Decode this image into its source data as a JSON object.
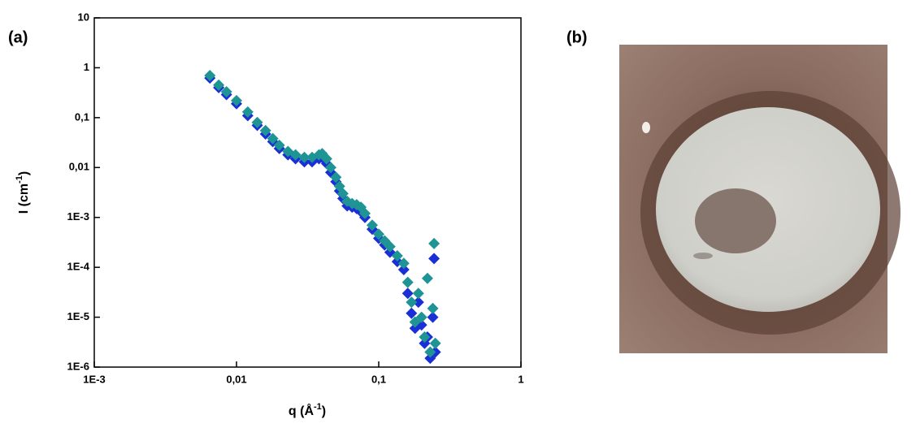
{
  "chart_data": {
    "type": "scatter",
    "panel_label": "(a)",
    "xlabel": [
      "q (Å",
      "-1",
      ")"
    ],
    "ylabel": [
      "I (cm",
      "-1",
      ")"
    ],
    "xscale": "log",
    "yscale": "log",
    "xlim": [
      0.001,
      1
    ],
    "ylim": [
      1e-06,
      10
    ],
    "xticks": [
      {
        "value": 0.001,
        "label": "1E-3"
      },
      {
        "value": 0.01,
        "label": "0,01"
      },
      {
        "value": 0.1,
        "label": "0,1"
      },
      1
    ],
    "yticks": [
      {
        "value": 1e-06,
        "label": "1E-6"
      },
      {
        "value": 1e-05,
        "label": "1E-5"
      },
      {
        "value": 0.0001,
        "label": "1E-4"
      },
      {
        "value": 0.001,
        "label": "1E-3"
      },
      {
        "value": 0.01,
        "label": "0,01"
      },
      {
        "value": 0.1,
        "label": "0,1"
      },
      1,
      10
    ],
    "x": [
      0.0065,
      0.0075,
      0.0085,
      0.01,
      0.012,
      0.014,
      0.016,
      0.018,
      0.02,
      0.023,
      0.026,
      0.03,
      0.034,
      0.038,
      0.04,
      0.043,
      0.046,
      0.05,
      0.053,
      0.056,
      0.06,
      0.065,
      0.07,
      0.075,
      0.08,
      0.09,
      0.1,
      0.11,
      0.12,
      0.135,
      0.15,
      0.16,
      0.17,
      0.18,
      0.19,
      0.2,
      0.21,
      0.22,
      0.23,
      0.24,
      0.245,
      0.25
    ],
    "series": [
      {
        "color": "#1e9494",
        "values": [
          0.7,
          0.45,
          0.33,
          0.22,
          0.13,
          0.08,
          0.055,
          0.038,
          0.028,
          0.021,
          0.018,
          0.016,
          0.016,
          0.018,
          0.019,
          0.015,
          0.01,
          0.0064,
          0.0042,
          0.003,
          0.0021,
          0.0019,
          0.0018,
          0.0016,
          0.0012,
          0.0007,
          0.00046,
          0.00034,
          0.00026,
          0.00017,
          0.00012,
          5e-05,
          2e-05,
          8e-06,
          3e-05,
          1e-05,
          4e-06,
          6e-05,
          2e-06,
          1.5e-05,
          0.0003,
          3e-06
        ]
      },
      {
        "color": "#1a2fd6",
        "values": [
          0.62,
          0.4,
          0.29,
          0.19,
          0.11,
          0.07,
          0.047,
          0.033,
          0.024,
          0.018,
          0.015,
          0.013,
          0.013,
          0.015,
          0.016,
          0.012,
          0.008,
          0.0052,
          0.0034,
          0.0024,
          0.0017,
          0.0016,
          0.0015,
          0.0013,
          0.001,
          0.00058,
          0.00038,
          0.00028,
          0.0002,
          0.00013,
          9e-05,
          3e-05,
          1.2e-05,
          6e-06,
          2e-05,
          7e-06,
          3e-06,
          4e-06,
          1.5e-06,
          1e-05,
          0.00015,
          2e-06
        ]
      }
    ]
  },
  "photo": {
    "panel_label": "(b)"
  }
}
